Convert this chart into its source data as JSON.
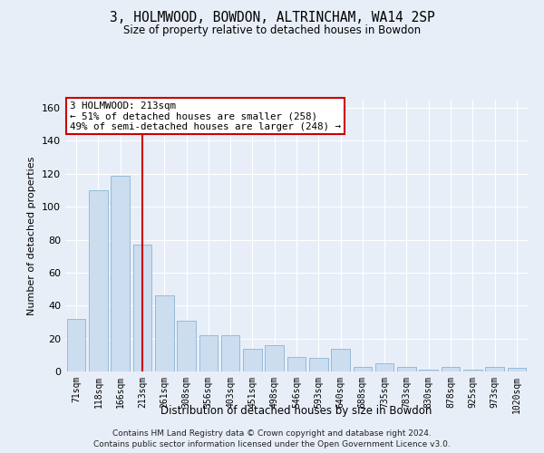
{
  "title": "3, HOLMWOOD, BOWDON, ALTRINCHAM, WA14 2SP",
  "subtitle": "Size of property relative to detached houses in Bowdon",
  "xlabel": "Distribution of detached houses by size in Bowdon",
  "ylabel": "Number of detached properties",
  "categories": [
    "71sqm",
    "118sqm",
    "166sqm",
    "213sqm",
    "261sqm",
    "308sqm",
    "356sqm",
    "403sqm",
    "451sqm",
    "498sqm",
    "546sqm",
    "593sqm",
    "640sqm",
    "688sqm",
    "735sqm",
    "783sqm",
    "830sqm",
    "878sqm",
    "925sqm",
    "973sqm",
    "1020sqm"
  ],
  "values": [
    32,
    110,
    119,
    77,
    46,
    31,
    22,
    22,
    14,
    16,
    9,
    8,
    14,
    3,
    5,
    3,
    1,
    3,
    1,
    3,
    2
  ],
  "bar_color": "#ccddf0",
  "bar_edge_color": "#8ab4d4",
  "vline_x": 3,
  "vline_color": "#cc0000",
  "annotation_line1": "3 HOLMWOOD: 213sqm",
  "annotation_line2": "← 51% of detached houses are smaller (258)",
  "annotation_line3": "49% of semi-detached houses are larger (248) →",
  "annotation_box_color": "#cc0000",
  "ylim": [
    0,
    165
  ],
  "yticks": [
    0,
    20,
    40,
    60,
    80,
    100,
    120,
    140,
    160
  ],
  "footer_line1": "Contains HM Land Registry data © Crown copyright and database right 2024.",
  "footer_line2": "Contains public sector information licensed under the Open Government Licence v3.0.",
  "background_color": "#e8eef8",
  "grid_color": "#ffffff",
  "title_fontsize": 10.5,
  "subtitle_fontsize": 8.5,
  "tick_fontsize": 7,
  "footer_fontsize": 6.5
}
